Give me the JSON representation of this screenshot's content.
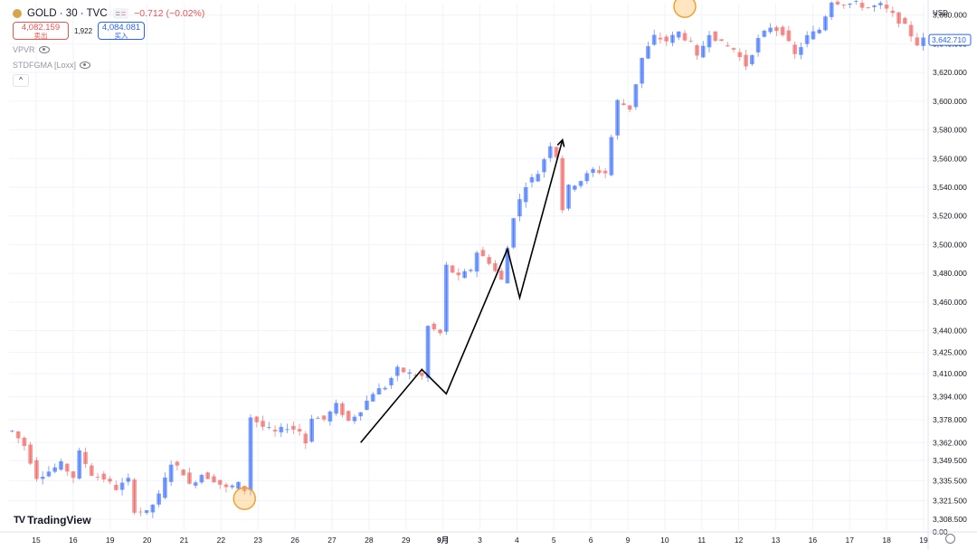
{
  "header": {
    "symbol_title": "GOLD · 30 · TVC",
    "change": "−0.712 (−0.02%)",
    "sell_price": "4,082.159",
    "sell_label": "卖出",
    "spread": "1,922",
    "buy_price": "4,084.081",
    "buy_label": "买入",
    "indicators": [
      {
        "label": "VPVR",
        "icon": "eye-icon"
      },
      {
        "label": "STDFGMA [Loxx]",
        "icon": "eye-icon"
      }
    ],
    "collapse_icon": "chevron-up-icon"
  },
  "price_axis": {
    "currency": "USD",
    "labels": [
      "3,660.000",
      "3,640.000",
      "3,620.000",
      "3,600.000",
      "3,580.000",
      "3,560.000",
      "3,540.000",
      "3,520.000",
      "3,500.000",
      "3,480.000",
      "3,460.000",
      "3,440.000",
      "3,425.000",
      "3,410.000",
      "3,394.000",
      "3,378.000",
      "3,362.000",
      "3,349.500",
      "3,335.500",
      "3,321.500",
      "3,308.500",
      "0.00"
    ],
    "current_price": "3,642.710",
    "current_color": "#2962ff"
  },
  "time_axis": {
    "labels": [
      "15",
      "16",
      "19",
      "20",
      "21",
      "22",
      "23",
      "26",
      "27",
      "28",
      "29",
      "9月",
      "3",
      "4",
      "5",
      "6",
      "9",
      "10",
      "11",
      "12",
      "13",
      "16",
      "17",
      "18",
      "19"
    ]
  },
  "logo": {
    "text": "TradingView",
    "mark": "TV"
  },
  "settings_icon": "gear-icon",
  "chart_data": {
    "type": "candlestick",
    "up_color": "#2962ff",
    "down_color": "#ef5350",
    "price_path": [
      [
        0,
        3370
      ],
      [
        2,
        3360
      ],
      [
        4,
        3338
      ],
      [
        6,
        3342
      ],
      [
        8,
        3347
      ],
      [
        10,
        3338
      ],
      [
        11,
        3355
      ],
      [
        13,
        3340
      ],
      [
        15,
        3337
      ],
      [
        17,
        3330
      ],
      [
        19,
        3336
      ],
      [
        20,
        3315
      ],
      [
        22,
        3313
      ],
      [
        24,
        3325
      ],
      [
        26,
        3348
      ],
      [
        28,
        3341
      ],
      [
        29,
        3332
      ],
      [
        31,
        3340
      ],
      [
        33,
        3336
      ],
      [
        35,
        3330
      ],
      [
        37,
        3333
      ],
      [
        38,
        3329
      ],
      [
        39,
        3380
      ],
      [
        41,
        3373
      ],
      [
        43,
        3369
      ],
      [
        45,
        3373
      ],
      [
        47,
        3370
      ],
      [
        48,
        3362
      ],
      [
        49,
        3380
      ],
      [
        51,
        3378
      ],
      [
        53,
        3388
      ],
      [
        55,
        3377
      ],
      [
        57,
        3385
      ],
      [
        59,
        3397
      ],
      [
        61,
        3401
      ],
      [
        63,
        3413
      ],
      [
        65,
        3410
      ],
      [
        67,
        3408
      ],
      [
        68,
        3443
      ],
      [
        70,
        3438
      ],
      [
        71,
        3485
      ],
      [
        73,
        3477
      ],
      [
        75,
        3483
      ],
      [
        76,
        3495
      ],
      [
        78,
        3488
      ],
      [
        80,
        3475
      ],
      [
        82,
        3520
      ],
      [
        84,
        3542
      ],
      [
        86,
        3550
      ],
      [
        88,
        3570
      ],
      [
        89,
        3562
      ],
      [
        90,
        3525
      ],
      [
        91,
        3540
      ],
      [
        93,
        3545
      ],
      [
        95,
        3552
      ],
      [
        97,
        3550
      ],
      [
        99,
        3600
      ],
      [
        101,
        3595
      ],
      [
        103,
        3630
      ],
      [
        105,
        3645
      ],
      [
        107,
        3642
      ],
      [
        109,
        3648
      ],
      [
        111,
        3640
      ],
      [
        112,
        3630
      ],
      [
        114,
        3648
      ],
      [
        116,
        3640
      ],
      [
        118,
        3636
      ],
      [
        120,
        3625
      ],
      [
        122,
        3643
      ],
      [
        124,
        3652
      ],
      [
        126,
        3648
      ],
      [
        128,
        3632
      ],
      [
        130,
        3645
      ],
      [
        132,
        3650
      ],
      [
        134,
        3670
      ],
      [
        136,
        3668
      ],
      [
        138,
        3668
      ],
      [
        140,
        3665
      ],
      [
        142,
        3667
      ],
      [
        144,
        3660
      ],
      [
        146,
        3652
      ],
      [
        148,
        3640
      ],
      [
        149,
        3643
      ]
    ],
    "drawing_zigzag": [
      [
        57,
        3362
      ],
      [
        67,
        3413
      ],
      [
        71,
        3396
      ],
      [
        81,
        3497
      ],
      [
        83,
        3463
      ],
      [
        90,
        3573
      ]
    ],
    "highlight_circles": [
      [
        38,
        3323
      ],
      [
        110,
        3666
      ]
    ],
    "y_range": [
      3301,
      3668
    ]
  }
}
